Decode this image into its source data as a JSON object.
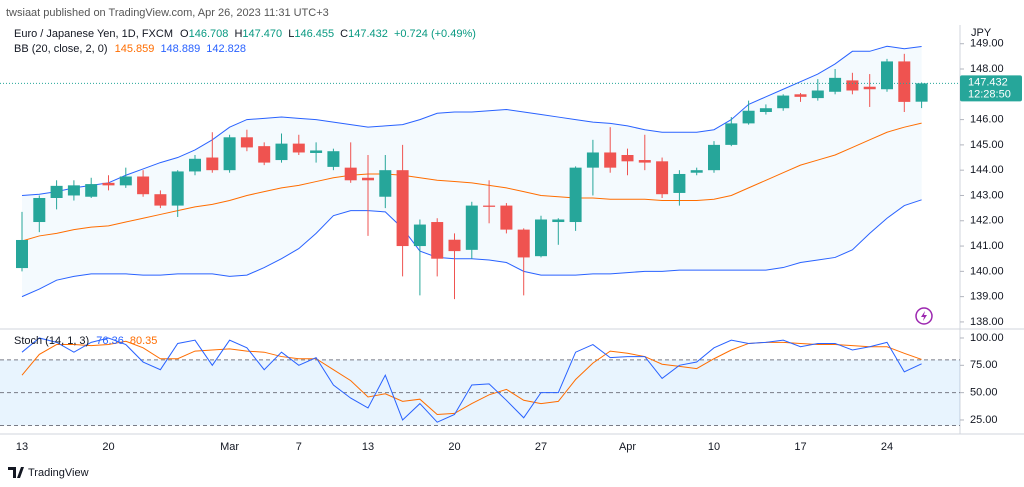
{
  "chart_data": {
    "type": "candlestick",
    "published": "twsiaat published on TradingView.com, Apr 26, 2023 11:31 UTC+3",
    "title": "Euro / Japanese Yen, 1D, FXCM",
    "ohlc_letters": [
      "O",
      "H",
      "L",
      "C"
    ],
    "ohlc_value_labels": [
      "146.708",
      "147.470",
      "146.455",
      "147.432"
    ],
    "change": "+0.724 (+0.49%)",
    "currency": "JPY",
    "countdown": "12:28:50",
    "brand": "TradingView",
    "categories": [
      "13",
      null,
      null,
      null,
      null,
      "20",
      null,
      null,
      null,
      null,
      null,
      null,
      "Mar",
      null,
      null,
      null,
      "7",
      null,
      null,
      null,
      "13",
      null,
      null,
      null,
      null,
      "20",
      null,
      null,
      null,
      null,
      "27",
      null,
      null,
      null,
      null,
      "Apr",
      null,
      null,
      null,
      null,
      "10",
      null,
      null,
      null,
      null,
      "17",
      null,
      null,
      null,
      null,
      "24",
      null,
      null
    ],
    "open": [
      140.13,
      141.95,
      142.9,
      143.0,
      142.95,
      143.5,
      143.4,
      143.75,
      143.05,
      142.6,
      143.95,
      144.5,
      144.0,
      145.3,
      144.95,
      144.4,
      145.05,
      144.68,
      144.13,
      144.1,
      143.7,
      142.95,
      144.0,
      141.0,
      141.95,
      141.25,
      140.85,
      142.6,
      142.6,
      141.65,
      140.6,
      141.95,
      141.95,
      144.1,
      144.7,
      144.6,
      144.4,
      144.35,
      143.1,
      143.9,
      144.0,
      145.0,
      145.85,
      146.3,
      146.45,
      147.0,
      146.85,
      147.1,
      147.55,
      147.3,
      147.2,
      148.3,
      146.708
    ],
    "high": [
      142.35,
      143.0,
      143.6,
      143.6,
      143.7,
      143.8,
      144.1,
      144.0,
      143.2,
      144.0,
      144.6,
      145.5,
      145.4,
      145.6,
      145.1,
      145.45,
      145.4,
      145.1,
      144.85,
      145.1,
      144.6,
      144.6,
      145.0,
      142.05,
      142.1,
      141.5,
      142.75,
      143.6,
      142.7,
      141.7,
      142.2,
      142.1,
      144.15,
      145.2,
      145.7,
      144.85,
      145.4,
      144.5,
      144.0,
      144.1,
      145.15,
      146.1,
      146.75,
      146.6,
      147.0,
      147.05,
      147.6,
      148.0,
      147.85,
      147.8,
      148.4,
      148.6,
      147.47
    ],
    "low": [
      140.0,
      141.55,
      142.45,
      142.8,
      142.9,
      143.2,
      143.3,
      142.95,
      142.5,
      142.15,
      143.8,
      143.9,
      143.9,
      144.75,
      144.2,
      144.3,
      144.6,
      144.3,
      144.0,
      143.5,
      141.4,
      142.5,
      139.8,
      139.05,
      139.8,
      138.9,
      140.5,
      141.9,
      141.5,
      139.05,
      140.55,
      141.05,
      141.6,
      143.0,
      143.9,
      143.8,
      144.0,
      142.9,
      142.6,
      143.8,
      143.9,
      144.95,
      145.8,
      146.2,
      146.35,
      146.7,
      146.75,
      147.0,
      147.0,
      146.5,
      147.1,
      146.3,
      146.455
    ],
    "close": [
      141.24,
      142.9,
      143.38,
      143.4,
      143.45,
      143.4,
      143.75,
      143.05,
      142.6,
      143.95,
      144.45,
      144.0,
      145.3,
      144.9,
      144.3,
      145.05,
      144.7,
      144.78,
      144.75,
      143.6,
      143.6,
      144.0,
      141.0,
      141.85,
      140.5,
      140.8,
      142.6,
      142.55,
      141.65,
      140.55,
      142.05,
      142.05,
      144.1,
      144.7,
      144.1,
      144.35,
      144.3,
      143.05,
      143.85,
      144.0,
      145.0,
      145.85,
      146.35,
      146.45,
      146.95,
      146.9,
      147.15,
      147.65,
      147.15,
      147.2,
      148.3,
      146.7,
      147.432
    ],
    "up_color": "#26a69a",
    "down_color": "#ef5350",
    "ylim": [
      137.76,
      149.74
    ],
    "yticks": [
      {
        "value": 138,
        "label": "138.00"
      },
      {
        "value": 139,
        "label": "139.00"
      },
      {
        "value": 140,
        "label": "140.00"
      },
      {
        "value": 141,
        "label": "141.00"
      },
      {
        "value": 142,
        "label": "142.00"
      },
      {
        "value": 143,
        "label": "143.00"
      },
      {
        "value": 144,
        "label": "144.00"
      },
      {
        "value": 145,
        "label": "145.00"
      },
      {
        "value": 146,
        "label": "146.00"
      },
      {
        "value": 148,
        "label": "148.00"
      },
      {
        "value": 149,
        "label": "149.00"
      }
    ],
    "bb": {
      "name": "BB (20, close, 2, 0)",
      "upper": [
        143.0,
        143.05,
        143.15,
        143.3,
        143.4,
        143.5,
        143.8,
        144.05,
        144.3,
        144.5,
        144.8,
        145.2,
        145.7,
        146.0,
        146.05,
        146.1,
        146.05,
        146.0,
        145.9,
        145.8,
        145.7,
        145.75,
        145.8,
        146.0,
        146.25,
        146.3,
        146.3,
        146.35,
        146.4,
        146.3,
        146.2,
        146.1,
        146.0,
        145.9,
        145.85,
        145.75,
        145.6,
        145.5,
        145.5,
        145.5,
        145.6,
        146.0,
        146.6,
        146.9,
        147.2,
        147.5,
        147.8,
        148.2,
        148.7,
        148.7,
        148.9,
        148.8,
        148.889
      ],
      "middle": [
        141.2,
        141.4,
        141.5,
        141.65,
        141.75,
        141.8,
        141.95,
        142.1,
        142.25,
        142.4,
        142.55,
        142.65,
        142.8,
        143.0,
        143.15,
        143.3,
        143.4,
        143.55,
        143.7,
        143.8,
        143.85,
        143.85,
        143.8,
        143.7,
        143.6,
        143.55,
        143.5,
        143.4,
        143.3,
        143.15,
        143.0,
        142.95,
        142.9,
        142.9,
        142.85,
        142.85,
        142.85,
        142.8,
        142.8,
        142.8,
        142.85,
        143.0,
        143.3,
        143.6,
        143.9,
        144.2,
        144.4,
        144.6,
        144.9,
        145.2,
        145.5,
        145.7,
        145.859
      ],
      "lower": [
        139.0,
        139.3,
        139.65,
        139.8,
        139.9,
        139.9,
        139.9,
        139.85,
        139.85,
        139.9,
        139.9,
        139.9,
        139.8,
        139.85,
        140.15,
        140.5,
        140.9,
        141.5,
        142.2,
        142.4,
        142.4,
        142.35,
        141.7,
        140.8,
        140.55,
        140.5,
        140.5,
        140.45,
        140.35,
        140.0,
        139.85,
        139.85,
        139.85,
        139.9,
        139.9,
        139.95,
        140.0,
        140.0,
        140.05,
        140.05,
        140.05,
        140.05,
        140.05,
        140.05,
        140.15,
        140.35,
        140.45,
        140.55,
        140.85,
        141.5,
        142.1,
        142.6,
        142.828
      ],
      "band_color": "#2962ff",
      "middle_color": "#ff6d00"
    },
    "stoch": {
      "name": "Stoch (14, 1, 3)",
      "k": [
        87,
        100,
        96,
        87,
        96,
        100,
        94,
        78,
        71,
        95,
        98,
        75,
        98,
        91,
        71,
        87,
        75,
        82,
        57,
        45,
        36,
        66,
        25,
        40,
        23,
        30,
        57,
        58,
        43,
        27,
        50,
        50,
        87,
        94,
        82,
        83,
        83,
        63,
        75,
        78,
        91,
        98,
        95,
        96,
        98,
        92,
        95,
        95,
        89,
        92,
        96,
        69,
        76.36
      ],
      "d": [
        66,
        85,
        94,
        94,
        93,
        94,
        97,
        91,
        81,
        81,
        88,
        89,
        90,
        88,
        87,
        83,
        81,
        81,
        71,
        61,
        46,
        49,
        42,
        44,
        30,
        31,
        40,
        48,
        53,
        43,
        40,
        42,
        62,
        77,
        88,
        86,
        83,
        76,
        74,
        72,
        81,
        89,
        95,
        96,
        96,
        95,
        94,
        94,
        93,
        92,
        92,
        86,
        80.35
      ],
      "k_color": "#2962ff",
      "d_color": "#ff6d00",
      "ylim": [
        14,
        107.3
      ],
      "yticks": [
        {
          "value": 25,
          "label": "25.00"
        },
        {
          "value": 50,
          "label": "50.00"
        },
        {
          "value": 75,
          "label": "75.00"
        },
        {
          "value": 100,
          "label": "100.00"
        }
      ],
      "bands": [
        20,
        50,
        80
      ]
    }
  }
}
